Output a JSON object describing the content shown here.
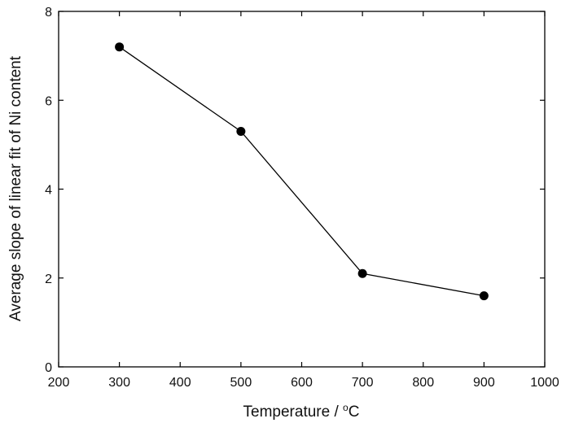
{
  "chart_data": {
    "type": "line",
    "title": "",
    "xlabel": "Temperature / °C",
    "xlabel_parts": {
      "prefix": "Temperature / ",
      "degree": "o",
      "unit": "C"
    },
    "ylabel": "Average slope of linear fit of Ni content",
    "xlim": [
      200,
      1000
    ],
    "ylim": [
      0,
      8
    ],
    "xticks": [
      200,
      300,
      400,
      500,
      600,
      700,
      800,
      900,
      1000
    ],
    "yticks": [
      0,
      2,
      4,
      6,
      8
    ],
    "grid": false,
    "legend": "none",
    "series": [
      {
        "x": [
          300,
          500,
          700,
          900
        ],
        "y": [
          7.2,
          5.3,
          2.1,
          1.6
        ],
        "marker": "filled-circle",
        "color": "#000000"
      }
    ]
  }
}
